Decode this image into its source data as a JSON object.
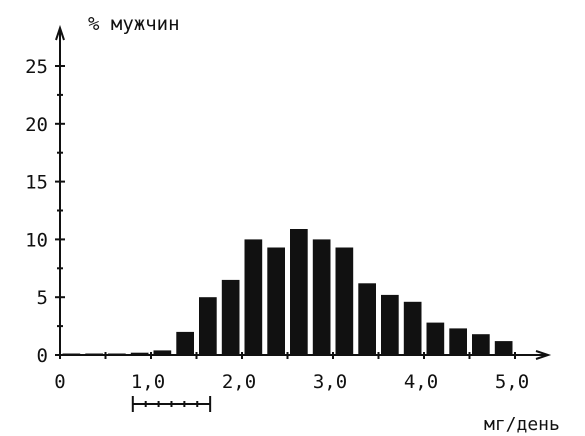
{
  "chart_data": {
    "type": "bar",
    "title": "% мужчин",
    "xlabel": "мг/день",
    "ylabel": "% мужчин",
    "xlim": [
      0,
      5.0
    ],
    "ylim": [
      0,
      25
    ],
    "x_ticks": [
      {
        "value": 0,
        "label": "0"
      },
      {
        "value": 1.0,
        "label": "1,0"
      },
      {
        "value": 2.0,
        "label": "2,0"
      },
      {
        "value": 3.0,
        "label": "3,0"
      },
      {
        "value": 4.0,
        "label": "4,0"
      },
      {
        "value": 5.0,
        "label": "5,0"
      }
    ],
    "y_ticks": [
      {
        "value": 0,
        "label": "0"
      },
      {
        "value": 5,
        "label": "5"
      },
      {
        "value": 10,
        "label": "10"
      },
      {
        "value": 15,
        "label": "15"
      },
      {
        "value": 20,
        "label": "20"
      },
      {
        "value": 25,
        "label": "25"
      }
    ],
    "bin_width": 0.25,
    "bars": [
      {
        "x": 0.0,
        "value": 0.1
      },
      {
        "x": 0.25,
        "value": 0.1
      },
      {
        "x": 0.5,
        "value": 0.1
      },
      {
        "x": 0.75,
        "value": 0.2
      },
      {
        "x": 1.0,
        "value": 0.4
      },
      {
        "x": 1.25,
        "value": 2.0
      },
      {
        "x": 1.5,
        "value": 5.0
      },
      {
        "x": 1.75,
        "value": 6.5
      },
      {
        "x": 2.0,
        "value": 10.0
      },
      {
        "x": 2.25,
        "value": 9.3
      },
      {
        "x": 2.5,
        "value": 10.9
      },
      {
        "x": 2.75,
        "value": 10.0
      },
      {
        "x": 3.0,
        "value": 9.3
      },
      {
        "x": 3.25,
        "value": 6.2
      },
      {
        "x": 3.5,
        "value": 5.2
      },
      {
        "x": 3.75,
        "value": 4.6
      },
      {
        "x": 4.0,
        "value": 2.8
      },
      {
        "x": 4.25,
        "value": 2.3
      },
      {
        "x": 4.5,
        "value": 1.8
      },
      {
        "x": 4.75,
        "value": 1.2
      }
    ],
    "range_marker": {
      "from": 0.8,
      "to": 1.65
    },
    "grid": false,
    "legend": "none"
  }
}
